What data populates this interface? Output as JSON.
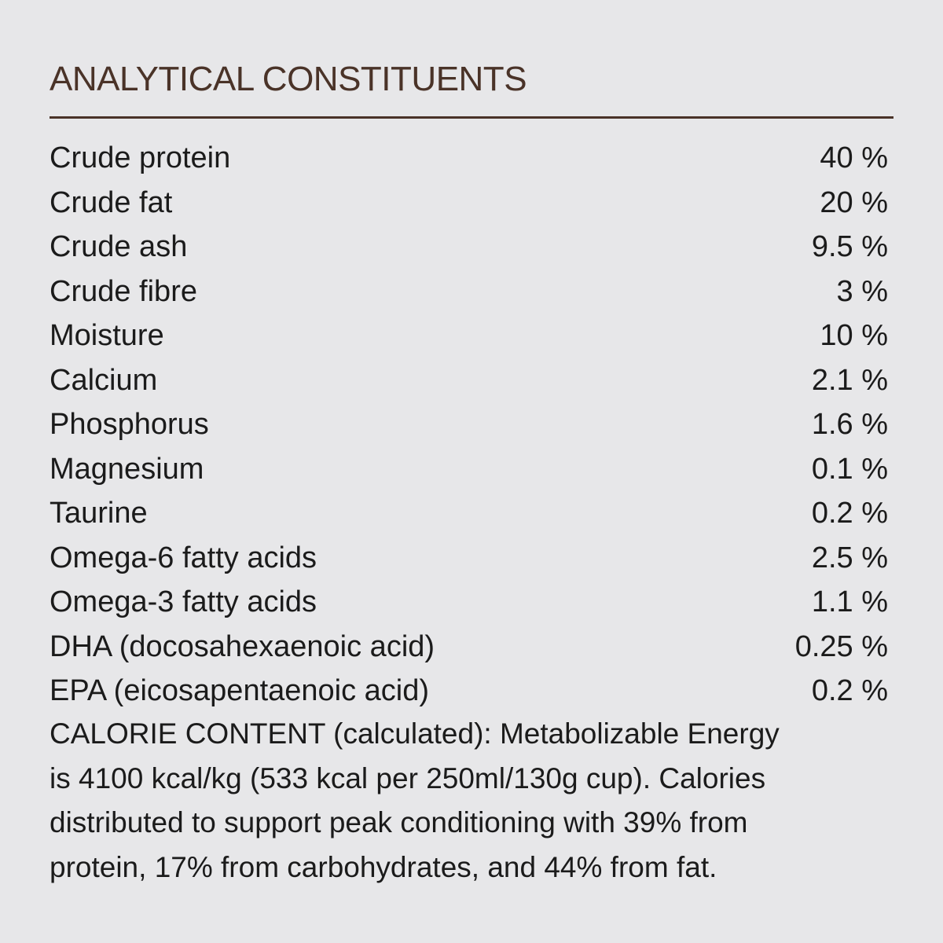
{
  "title": "ANALYTICAL CONSTITUENTS",
  "table": {
    "rows": [
      [
        "Crude protein",
        "40 %"
      ],
      [
        "Crude fat",
        "20 %"
      ],
      [
        "Crude ash",
        "9.5 %"
      ],
      [
        "Crude fibre",
        "3 %"
      ],
      [
        "Moisture",
        "10 %"
      ],
      [
        "Calcium",
        "2.1 %"
      ],
      [
        "Phosphorus",
        "1.6 %"
      ],
      [
        "Magnesium",
        "0.1 %"
      ],
      [
        "Taurine",
        "0.2 %"
      ],
      [
        "Omega-6 fatty acids",
        "2.5 %"
      ],
      [
        "Omega-3 fatty acids",
        "1.1 %"
      ],
      [
        "DHA (docosahexaenoic acid)",
        "0.25 %"
      ],
      [
        "EPA (eicosapentaenoic acid)",
        "0.2 %"
      ]
    ]
  },
  "calorie_content": {
    "lines": [
      "CALORIE CONTENT (calculated): Metabolizable Energy",
      "is 4100 kcal/kg (533 kcal per 250ml/130g cup). Calories",
      "distributed to support peak conditioning with 39% from",
      "protein, 17% from carbohydrates, and 44% from fat."
    ]
  }
}
